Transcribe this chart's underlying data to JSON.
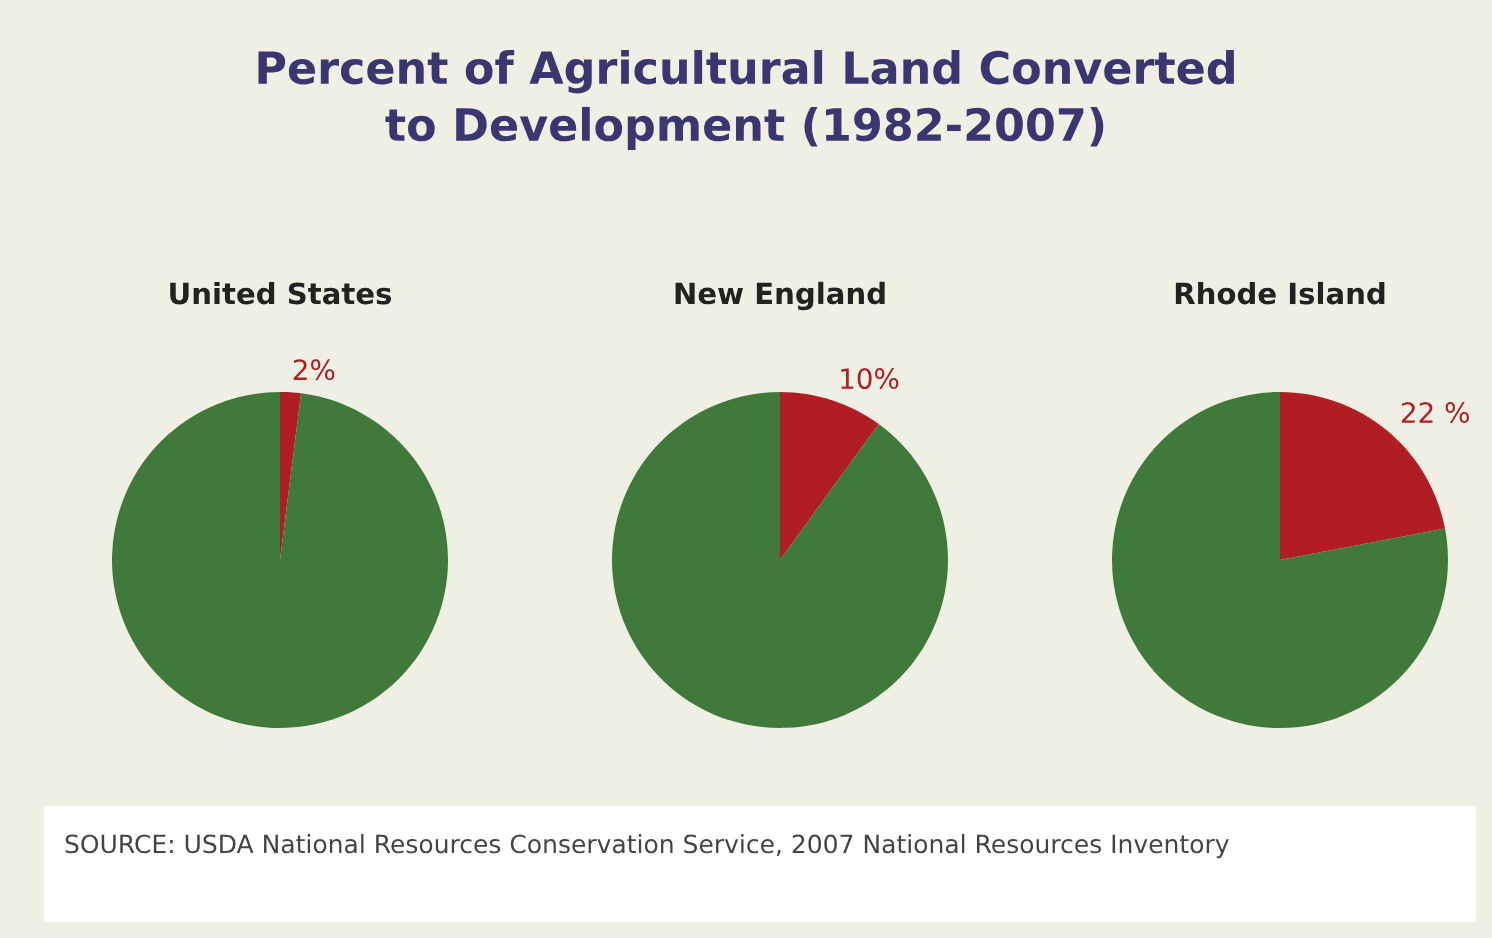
{
  "chart_data": [
    {
      "type": "pie",
      "title": "Percent of Agricultural Land Converted\nto Development (1982-2007)",
      "subtitle": "United States",
      "categories": [
        null,
        null
      ],
      "values": [
        2,
        98
      ],
      "value_labels": [
        "2%",
        null
      ],
      "colors": [
        "#b01e24",
        "#3f7a3a"
      ]
    },
    {
      "type": "pie",
      "subtitle": "New England",
      "categories": [
        null,
        null
      ],
      "values": [
        10,
        90
      ],
      "value_labels": [
        "10%",
        null
      ],
      "colors": [
        "#b01e24",
        "#3f7a3a"
      ]
    },
    {
      "type": "pie",
      "subtitle": "Rhode Island",
      "categories": [
        null,
        null
      ],
      "values": [
        22,
        78
      ],
      "value_labels": [
        "22 %",
        null
      ],
      "colors": [
        "#b01e24",
        "#3f7a3a"
      ],
      "annotations": [
        "SOURCE: USDA National Resources Conservation Service, 2007 National Resources Inventory"
      ]
    }
  ]
}
